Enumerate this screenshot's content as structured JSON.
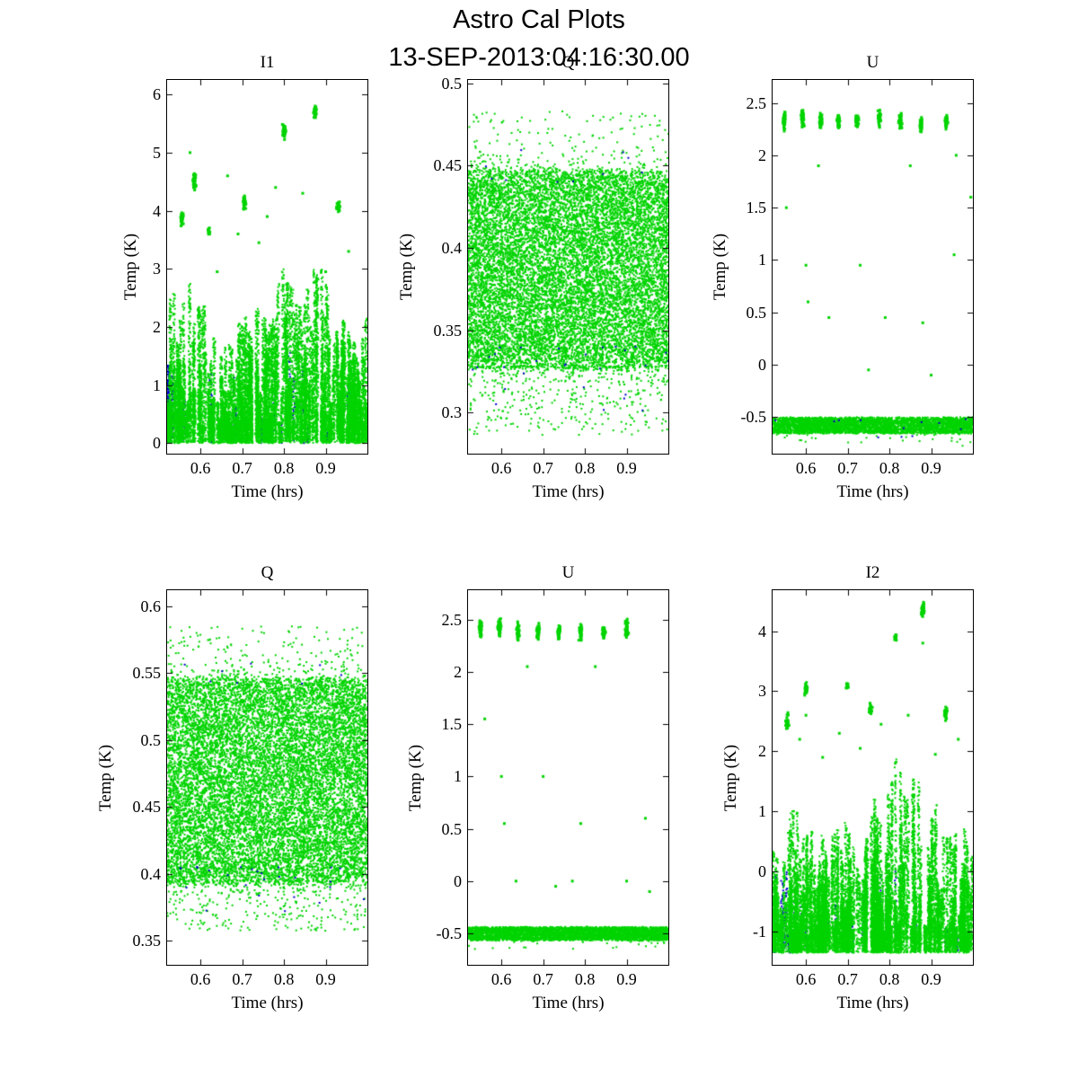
{
  "figure": {
    "title": "Astro Cal Plots",
    "subtitle": "13-SEP-2013:04:16:30.00",
    "background": "#ffffff",
    "axis_color": "#000000",
    "palette": {
      "primary": "#00d400",
      "secondary": "#0000cc"
    }
  },
  "chart_data": [
    {
      "type": "scatter",
      "title": "I1",
      "xlabel": "Time (hrs)",
      "ylabel": "Temp (K)",
      "xlim": [
        0.52,
        1.0
      ],
      "ylim": [
        -0.18,
        6.25
      ],
      "xticks": [
        "0.6",
        "0.7",
        "0.8",
        "0.9"
      ],
      "xtick_vals": [
        0.6,
        0.7,
        0.8,
        0.9
      ],
      "yticks": [
        "0",
        "1",
        "2",
        "3",
        "4",
        "5",
        "6"
      ],
      "ytick_vals": [
        0,
        1,
        2,
        3,
        4,
        5,
        6
      ],
      "layers": [
        {
          "type": "spikes",
          "color": "secondary",
          "base": 0,
          "cols": 26,
          "pts": 22,
          "xbias": 2.0,
          "envelope": [
            [
              0.52,
              1.8
            ],
            [
              0.6,
              1.5
            ],
            [
              0.7,
              1.2
            ],
            [
              0.8,
              1.6
            ],
            [
              1.0,
              1.2
            ]
          ]
        },
        {
          "type": "spikes",
          "color": "primary",
          "base": 0,
          "cols": 250,
          "pts": 75,
          "envelope": [
            [
              0.52,
              2.6
            ],
            [
              0.57,
              3.0
            ],
            [
              0.63,
              2.2
            ],
            [
              0.68,
              1.8
            ],
            [
              0.72,
              2.7
            ],
            [
              0.76,
              2.3
            ],
            [
              0.8,
              3.2
            ],
            [
              0.84,
              2.9
            ],
            [
              0.88,
              3.3
            ],
            [
              0.92,
              2.4
            ],
            [
              0.96,
              2.0
            ],
            [
              1.0,
              2.2
            ]
          ]
        },
        {
          "type": "clusters",
          "color": "primary",
          "items": [
            [
              0.555,
              3.85,
              0.18,
              35
            ],
            [
              0.585,
              4.5,
              0.22,
              40
            ],
            [
              0.62,
              3.65,
              0.1,
              14
            ],
            [
              0.705,
              4.15,
              0.18,
              30
            ],
            [
              0.8,
              5.35,
              0.18,
              35
            ],
            [
              0.875,
              5.7,
              0.13,
              40
            ],
            [
              0.93,
              4.05,
              0.13,
              30
            ]
          ]
        },
        {
          "type": "sparse",
          "color": "primary",
          "points": [
            [
              0.575,
              5.0
            ],
            [
              0.64,
              2.95
            ],
            [
              0.665,
              4.6
            ],
            [
              0.74,
              3.45
            ],
            [
              0.78,
              4.4
            ],
            [
              0.845,
              4.3
            ],
            [
              0.9,
              2.95
            ],
            [
              0.955,
              3.3
            ],
            [
              0.69,
              3.6
            ],
            [
              0.76,
              3.9
            ]
          ]
        }
      ]
    },
    {
      "type": "scatter",
      "title": "Q",
      "xlabel": "Time (hrs)",
      "ylabel": "Temp (K)",
      "xlim": [
        0.52,
        1.0
      ],
      "ylim": [
        0.275,
        0.502
      ],
      "xticks": [
        "0.6",
        "0.7",
        "0.8",
        "0.9"
      ],
      "xtick_vals": [
        0.6,
        0.7,
        0.8,
        0.9
      ],
      "yticks": [
        "0.3",
        "0.35",
        "0.4",
        "0.45",
        "0.5"
      ],
      "ytick_vals": [
        0.3,
        0.35,
        0.4,
        0.45,
        0.5
      ],
      "layers": [
        {
          "type": "band",
          "color": "primary",
          "ymin": 0.328,
          "ymax": 0.446,
          "n": 12500,
          "fuzz": 0.006
        },
        {
          "type": "range",
          "color": "primary",
          "ymin": 0.446,
          "ymax": 0.483,
          "n": 260,
          "bias": "low"
        },
        {
          "type": "range",
          "color": "primary",
          "ymin": 0.286,
          "ymax": 0.328,
          "n": 500,
          "bias": "high"
        },
        {
          "type": "range",
          "color": "secondary",
          "ymin": 0.3,
          "ymax": 0.34,
          "n": 28,
          "bias": "high"
        },
        {
          "type": "range",
          "color": "secondary",
          "ymin": 0.44,
          "ymax": 0.46,
          "n": 10,
          "bias": "low"
        }
      ]
    },
    {
      "type": "scatter",
      "title": "U",
      "xlabel": "Time (hrs)",
      "ylabel": "Temp (K)",
      "xlim": [
        0.52,
        1.0
      ],
      "ylim": [
        -0.85,
        2.72
      ],
      "xticks": [
        "0.6",
        "0.7",
        "0.8",
        "0.9"
      ],
      "xtick_vals": [
        0.6,
        0.7,
        0.8,
        0.9
      ],
      "yticks": [
        "-0.5",
        "0",
        "0.5",
        "1",
        "1.5",
        "2",
        "2.5"
      ],
      "ytick_vals": [
        -0.5,
        0,
        0.5,
        1,
        1.5,
        2,
        2.5
      ],
      "layers": [
        {
          "type": "band",
          "color": "primary",
          "ymin": -0.655,
          "ymax": -0.505,
          "n": 3800,
          "fuzz": 0.01
        },
        {
          "type": "range",
          "color": "primary",
          "ymin": -0.79,
          "ymax": -0.655,
          "n": 40,
          "bias": "high"
        },
        {
          "type": "range",
          "color": "secondary",
          "ymin": -0.7,
          "ymax": -0.52,
          "n": 12,
          "bias": "high"
        },
        {
          "type": "clusters",
          "color": "primary",
          "items": [
            [
              0.548,
              2.33,
              0.12,
              45
            ],
            [
              0.592,
              2.36,
              0.12,
              45
            ],
            [
              0.636,
              2.33,
              0.11,
              42
            ],
            [
              0.678,
              2.32,
              0.1,
              40
            ],
            [
              0.722,
              2.33,
              0.1,
              40
            ],
            [
              0.776,
              2.35,
              0.1,
              40
            ],
            [
              0.826,
              2.32,
              0.1,
              38
            ],
            [
              0.876,
              2.3,
              0.09,
              35
            ],
            [
              0.936,
              2.33,
              0.1,
              40
            ]
          ]
        },
        {
          "type": "sparse",
          "color": "primary",
          "points": [
            [
              0.553,
              1.5
            ],
            [
              0.6,
              0.95
            ],
            [
              0.605,
              0.6
            ],
            [
              0.63,
              1.9
            ],
            [
              0.655,
              0.45
            ],
            [
              0.73,
              0.95
            ],
            [
              0.75,
              -0.05
            ],
            [
              0.79,
              0.45
            ],
            [
              0.85,
              1.9
            ],
            [
              0.88,
              0.4
            ],
            [
              0.9,
              -0.1
            ],
            [
              0.955,
              1.05
            ],
            [
              0.96,
              2.0
            ],
            [
              0.995,
              1.6
            ]
          ]
        }
      ]
    },
    {
      "type": "scatter",
      "title": "Q",
      "xlabel": "Time (hrs)",
      "ylabel": "Temp (K)",
      "xlim": [
        0.52,
        1.0
      ],
      "ylim": [
        0.332,
        0.612
      ],
      "xticks": [
        "0.6",
        "0.7",
        "0.8",
        "0.9"
      ],
      "xtick_vals": [
        0.6,
        0.7,
        0.8,
        0.9
      ],
      "yticks": [
        "0.35",
        "0.4",
        "0.45",
        "0.5",
        "0.55",
        "0.6"
      ],
      "ytick_vals": [
        0.35,
        0.4,
        0.45,
        0.5,
        0.55,
        0.6
      ],
      "layers": [
        {
          "type": "band",
          "color": "primary",
          "ymin": 0.395,
          "ymax": 0.545,
          "n": 12500,
          "fuzz": 0.007
        },
        {
          "type": "range",
          "color": "primary",
          "ymin": 0.545,
          "ymax": 0.585,
          "n": 280,
          "bias": "low"
        },
        {
          "type": "range",
          "color": "primary",
          "ymin": 0.357,
          "ymax": 0.395,
          "n": 450,
          "bias": "high"
        },
        {
          "type": "range",
          "color": "secondary",
          "ymin": 0.37,
          "ymax": 0.405,
          "n": 26,
          "bias": "high"
        },
        {
          "type": "range",
          "color": "secondary",
          "ymin": 0.54,
          "ymax": 0.56,
          "n": 8,
          "bias": "low"
        }
      ]
    },
    {
      "type": "scatter",
      "title": "U",
      "xlabel": "Time (hrs)",
      "ylabel": "Temp (K)",
      "xlim": [
        0.52,
        1.0
      ],
      "ylim": [
        -0.8,
        2.78
      ],
      "xticks": [
        "0.6",
        "0.7",
        "0.8",
        "0.9"
      ],
      "xtick_vals": [
        0.6,
        0.7,
        0.8,
        0.9
      ],
      "yticks": [
        "-0.5",
        "0",
        "0.5",
        "1",
        "1.5",
        "2",
        "2.5"
      ],
      "ytick_vals": [
        -0.5,
        0,
        0.5,
        1,
        1.5,
        2,
        2.5
      ],
      "layers": [
        {
          "type": "band",
          "color": "primary",
          "ymin": -0.565,
          "ymax": -0.44,
          "n": 3800,
          "fuzz": 0.01
        },
        {
          "type": "range",
          "color": "primary",
          "ymin": -0.66,
          "ymax": -0.565,
          "n": 35,
          "bias": "high"
        },
        {
          "type": "clusters",
          "color": "primary",
          "items": [
            [
              0.55,
              2.4,
              0.12,
              45
            ],
            [
              0.595,
              2.42,
              0.12,
              45
            ],
            [
              0.64,
              2.38,
              0.11,
              42
            ],
            [
              0.688,
              2.38,
              0.1,
              40
            ],
            [
              0.737,
              2.38,
              0.1,
              40
            ],
            [
              0.79,
              2.38,
              0.1,
              40
            ],
            [
              0.845,
              2.38,
              0.1,
              38
            ],
            [
              0.9,
              2.4,
              0.12,
              45
            ]
          ]
        },
        {
          "type": "sparse",
          "color": "primary",
          "points": [
            [
              0.56,
              1.55
            ],
            [
              0.6,
              1.0
            ],
            [
              0.607,
              0.55
            ],
            [
              0.635,
              0.0
            ],
            [
              0.662,
              2.05
            ],
            [
              0.7,
              1.0
            ],
            [
              0.73,
              -0.05
            ],
            [
              0.77,
              0.0
            ],
            [
              0.79,
              0.55
            ],
            [
              0.825,
              2.05
            ],
            [
              0.9,
              0.0
            ],
            [
              0.945,
              0.6
            ],
            [
              0.955,
              -0.1
            ]
          ]
        }
      ]
    },
    {
      "type": "scatter",
      "title": "I2",
      "xlabel": "Time (hrs)",
      "ylabel": "Temp (K)",
      "xlim": [
        0.52,
        1.0
      ],
      "ylim": [
        -1.55,
        4.68
      ],
      "xticks": [
        "0.6",
        "0.7",
        "0.8",
        "0.9"
      ],
      "xtick_vals": [
        0.6,
        0.7,
        0.8,
        0.9
      ],
      "yticks": [
        "-1",
        "0",
        "1",
        "2",
        "3",
        "4"
      ],
      "ytick_vals": [
        -1,
        0,
        1,
        2,
        3,
        4
      ],
      "layers": [
        {
          "type": "spikes",
          "color": "secondary",
          "base": -1.35,
          "cols": 26,
          "pts": 22,
          "xbias": 2.0,
          "envelope": [
            [
              0.52,
              1.6
            ],
            [
              0.6,
              1.3
            ],
            [
              0.7,
              1.1
            ],
            [
              0.8,
              1.5
            ],
            [
              1.0,
              1.1
            ]
          ]
        },
        {
          "type": "spikes",
          "color": "primary",
          "base": -1.35,
          "cols": 250,
          "pts": 75,
          "envelope": [
            [
              0.52,
              1.9
            ],
            [
              0.56,
              2.5
            ],
            [
              0.6,
              2.2
            ],
            [
              0.65,
              1.9
            ],
            [
              0.7,
              2.3
            ],
            [
              0.74,
              2.1
            ],
            [
              0.78,
              2.9
            ],
            [
              0.82,
              3.35
            ],
            [
              0.86,
              3.1
            ],
            [
              0.9,
              2.6
            ],
            [
              0.94,
              2.2
            ],
            [
              1.0,
              2.1
            ]
          ]
        },
        {
          "type": "clusters",
          "color": "primary",
          "items": [
            [
              0.555,
              2.5,
              0.16,
              30
            ],
            [
              0.6,
              3.05,
              0.16,
              35
            ],
            [
              0.7,
              3.1,
              0.08,
              12
            ],
            [
              0.755,
              2.7,
              0.13,
              25
            ],
            [
              0.815,
              3.9,
              0.1,
              14
            ],
            [
              0.88,
              4.35,
              0.16,
              40
            ],
            [
              0.935,
              2.65,
              0.16,
              35
            ]
          ]
        },
        {
          "type": "sparse",
          "color": "primary",
          "points": [
            [
              0.585,
              2.2
            ],
            [
              0.64,
              1.9
            ],
            [
              0.68,
              2.3
            ],
            [
              0.73,
              2.05
            ],
            [
              0.78,
              2.45
            ],
            [
              0.845,
              2.6
            ],
            [
              0.91,
              1.95
            ],
            [
              0.965,
              2.2
            ],
            [
              0.6,
              2.6
            ],
            [
              0.88,
              3.8
            ]
          ]
        }
      ]
    }
  ]
}
